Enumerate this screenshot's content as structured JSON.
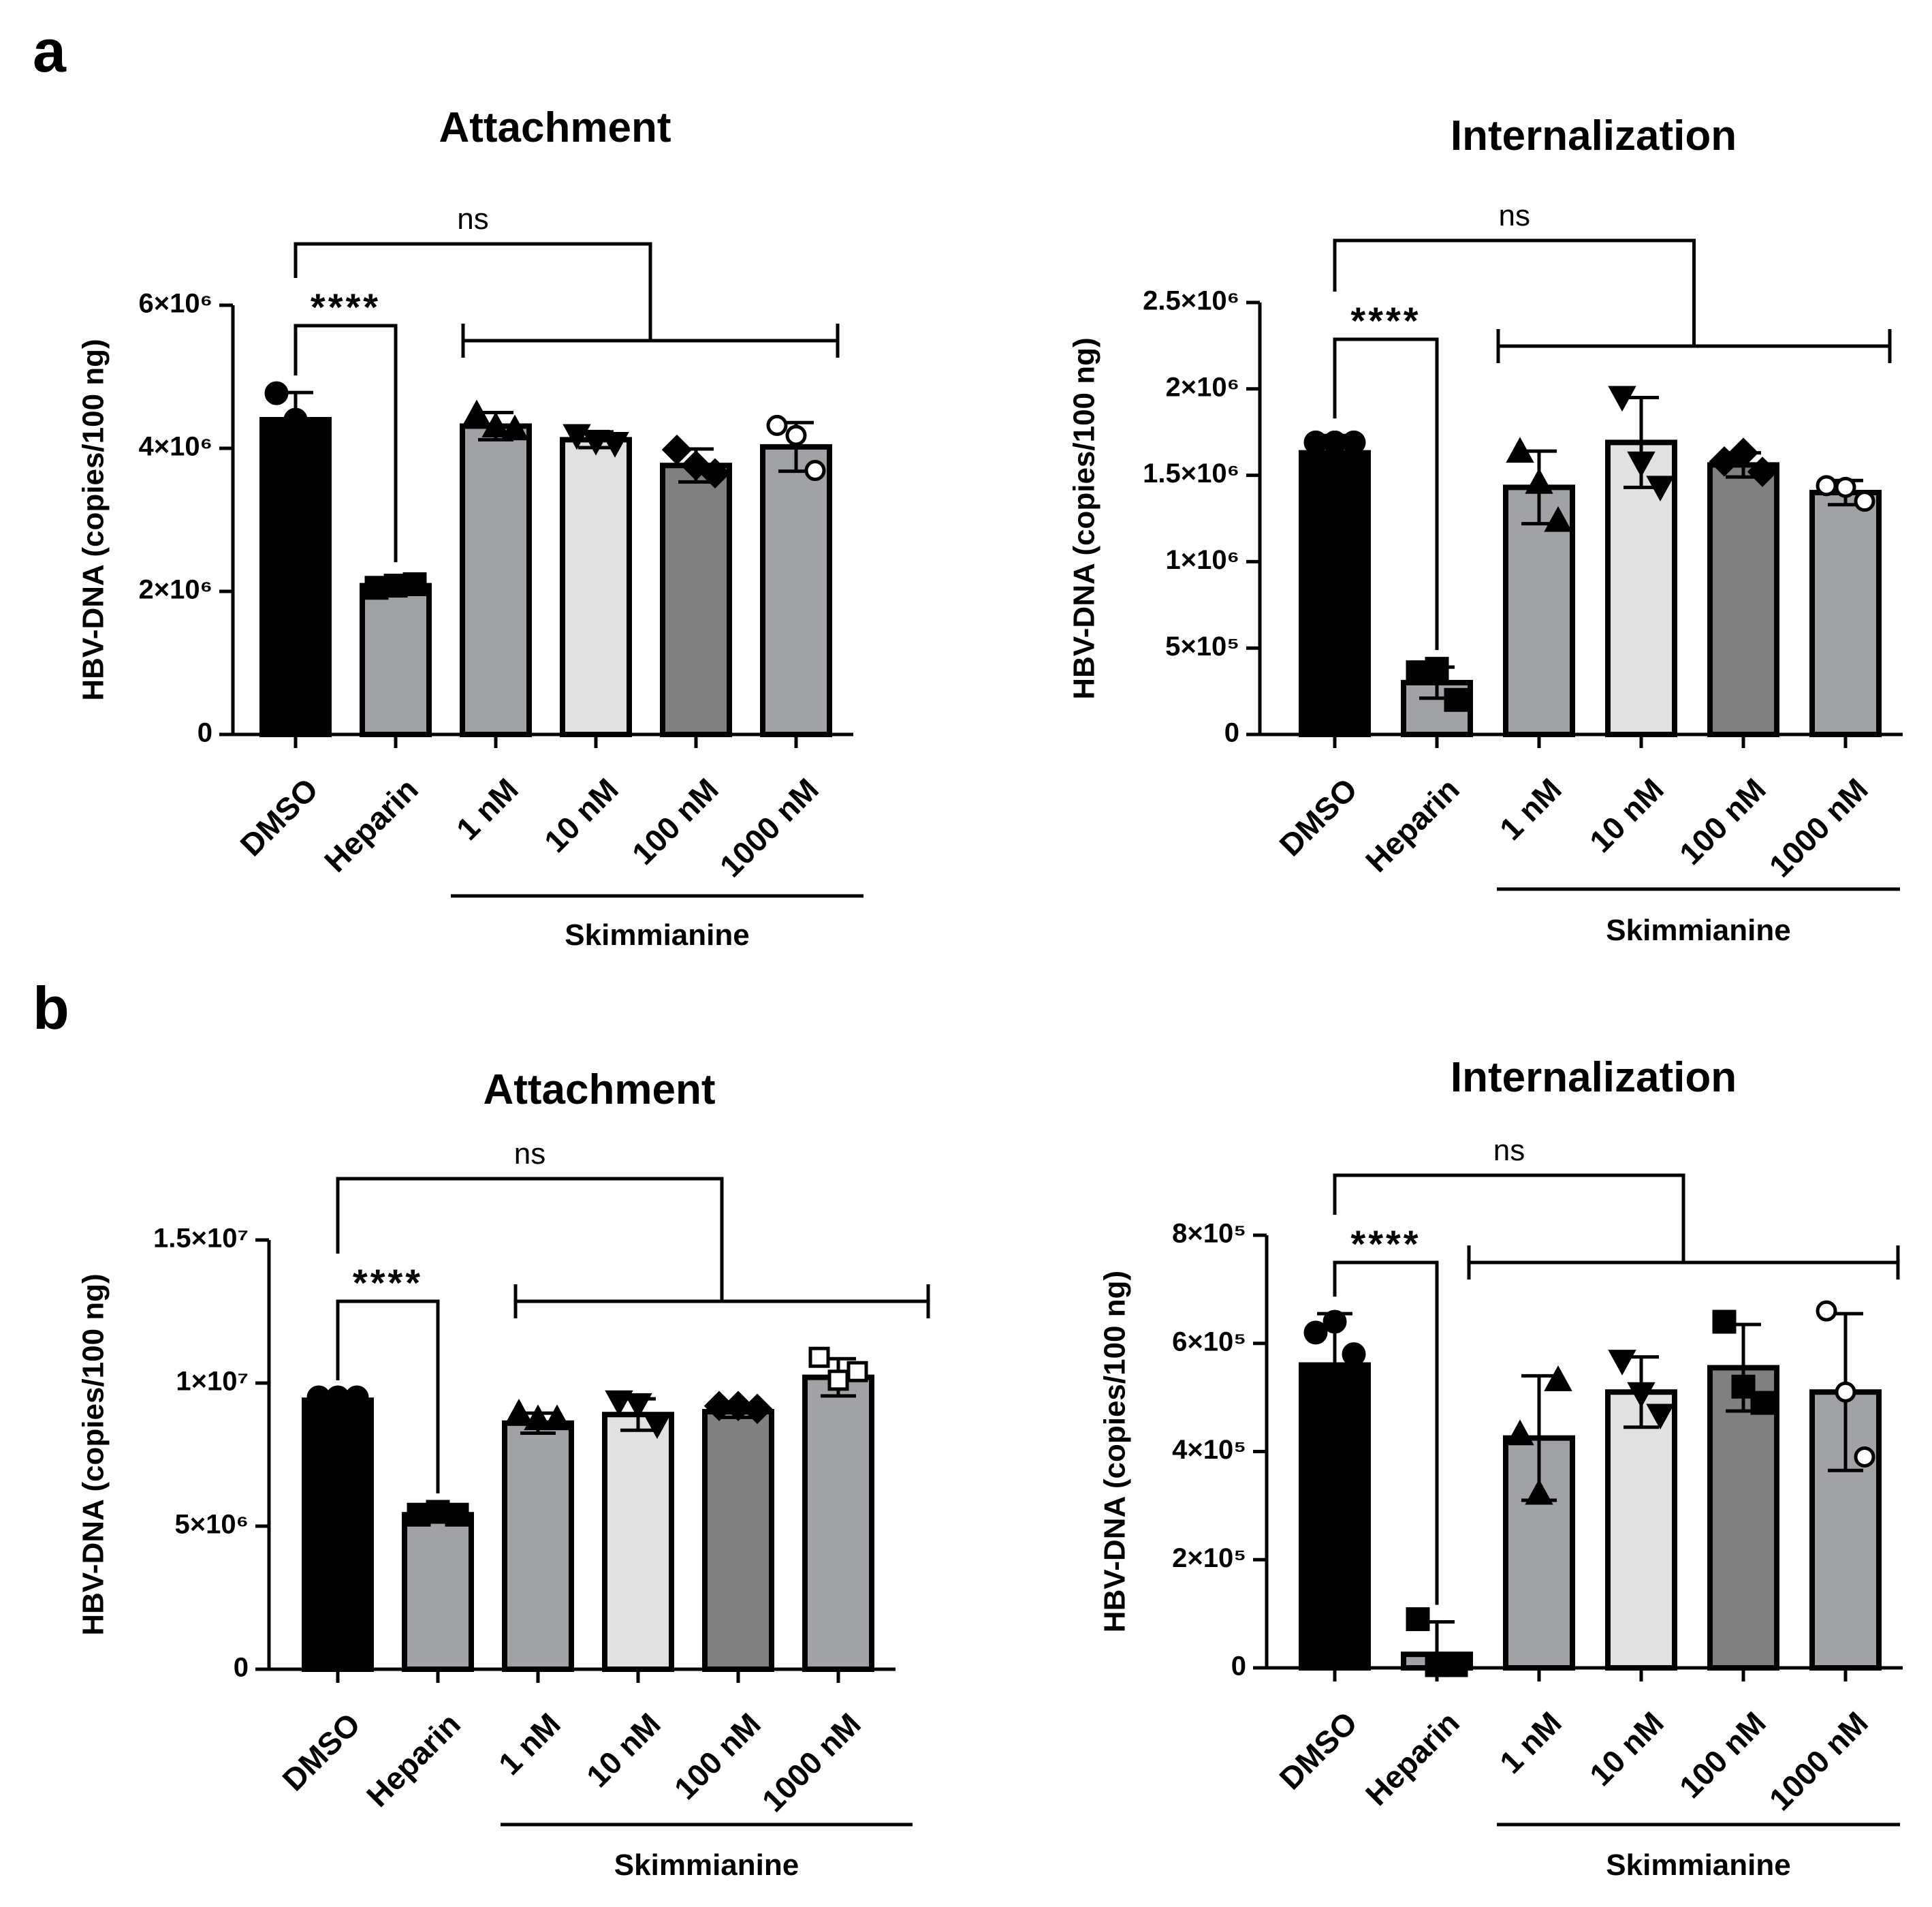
{
  "panel_labels": [
    "a",
    "b"
  ],
  "palette": {
    "DMSO": "#000000",
    "Heparin": "#a0a2a6",
    "1 nM": "#a0a2a6",
    "10 nM": "#e1e1e1",
    "100 nM": "#808080",
    "1000 nM": "#a0a2a6"
  },
  "chart_data": [
    {
      "type": "bar",
      "panel": "a",
      "title": "Attachment",
      "ylabel": "HBV-DNA (copies/100 ng)",
      "xlabel": "",
      "categories": [
        "DMSO",
        "Heparin",
        "1 nM",
        "10 nM",
        "100 nM",
        "1000 nM"
      ],
      "values": [
        4400000,
        2080000,
        4310000,
        4120000,
        3760000,
        4020000
      ],
      "errors": [
        380000,
        90000,
        190000,
        110000,
        230000,
        340000
      ],
      "points": [
        [
          4770000,
          4400000,
          4030000
        ],
        [
          2050000,
          2080000,
          2100000
        ],
        [
          4460000,
          4290000,
          4250000
        ],
        [
          4200000,
          4120000,
          4090000
        ],
        [
          3980000,
          3760000,
          3650000
        ],
        [
          4320000,
          4180000,
          3690000
        ]
      ],
      "markers": [
        "circle",
        "square",
        "triangle-up",
        "triangle-down",
        "diamond",
        "circle-open"
      ],
      "yticks": [
        0,
        2000000,
        4000000,
        6000000
      ],
      "ytick_labels": [
        "0",
        "2×10⁶",
        "4×10⁶",
        "6×10⁶"
      ],
      "ylim": [
        0,
        6000000
      ],
      "group_label": "Skimmianine",
      "significance": [
        {
          "from": "DMSO",
          "to": "Heparin",
          "label": "****"
        },
        {
          "from": "DMSO",
          "to": "1 nM to 1000 nM",
          "label": "ns"
        }
      ]
    },
    {
      "type": "bar",
      "panel": "a",
      "title": "Internalization",
      "ylabel": "HBV-DNA (copies/100 ng)",
      "xlabel": "",
      "categories": [
        "DMSO",
        "Heparin",
        "1 nM",
        "10 nM",
        "100 nM",
        "1000 nM"
      ],
      "values": [
        1630000,
        300000,
        1430000,
        1690000,
        1560000,
        1400000
      ],
      "errors": [
        100000,
        90000,
        210000,
        260000,
        70000,
        70000
      ],
      "points": [
        [
          1690000,
          1690000,
          1690000
        ],
        [
          360000,
          380000,
          200000
        ],
        [
          1630000,
          1450000,
          1230000
        ],
        [
          1960000,
          1580000,
          1440000
        ],
        [
          1580000,
          1630000,
          1520000
        ],
        [
          1440000,
          1430000,
          1350000
        ]
      ],
      "markers": [
        "circle",
        "square",
        "triangle-up",
        "triangle-down",
        "diamond",
        "circle-open"
      ],
      "yticks": [
        0,
        500000,
        1000000,
        1500000,
        2000000,
        2500000
      ],
      "ytick_labels": [
        "0",
        "5×10⁵",
        "1×10⁶",
        "1.5×10⁶",
        "2×10⁶",
        "2.5×10⁶"
      ],
      "ylim": [
        0,
        2500000
      ],
      "group_label": "Skimmianine",
      "significance": [
        {
          "from": "DMSO",
          "to": "Heparin",
          "label": "****"
        },
        {
          "from": "DMSO",
          "to": "1 nM to 1000 nM",
          "label": "ns"
        }
      ]
    },
    {
      "type": "bar",
      "panel": "b",
      "title": "Attachment",
      "ylabel": "HBV-DNA (copies/100 ng)",
      "xlabel": "",
      "categories": [
        "DMSO",
        "Heparin",
        "1 nM",
        "10 nM",
        "100 nM",
        "1000 nM"
      ],
      "values": [
        9400000,
        5400000,
        8600000,
        8900000,
        9000000,
        10200000
      ],
      "errors": [
        100000,
        150000,
        350000,
        550000,
        200000,
        650000
      ],
      "points": [
        [
          9500000,
          9500000,
          9500000
        ],
        [
          5400000,
          5500000,
          5400000
        ],
        [
          8900000,
          8700000,
          8700000
        ],
        [
          9400000,
          9300000,
          8600000
        ],
        [
          9200000,
          9200000,
          9100000
        ],
        [
          10900000,
          10100000,
          10400000
        ]
      ],
      "markers": [
        "circle",
        "square",
        "triangle-up",
        "triangle-down",
        "diamond",
        "square-open"
      ],
      "yticks": [
        0,
        5000000,
        10000000,
        15000000
      ],
      "ytick_labels": [
        "0",
        "5×10⁶",
        "1×10⁷",
        "1.5×10⁷"
      ],
      "ylim": [
        0,
        15000000
      ],
      "group_label": "Skimmianine",
      "significance": [
        {
          "from": "DMSO",
          "to": "Heparin",
          "label": "****"
        },
        {
          "from": "DMSO",
          "to": "1 nM to 1000 nM",
          "label": "ns"
        }
      ]
    },
    {
      "type": "bar",
      "panel": "b",
      "title": "Internalization",
      "ylabel": "HBV-DNA (copies/100 ng)",
      "xlabel": "",
      "categories": [
        "DMSO",
        "Heparin",
        "1 nM",
        "10 nM",
        "100 nM",
        "1000 nM"
      ],
      "values": [
        560000,
        25000,
        425000,
        510000,
        555000,
        510000
      ],
      "errors": [
        95000,
        60000,
        115000,
        65000,
        80000,
        145000
      ],
      "points": [
        [
          620000,
          640000,
          580000
        ],
        [
          90000,
          5000,
          5000
        ],
        [
          430000,
          320000,
          530000
        ],
        [
          570000,
          510000,
          470000
        ],
        [
          640000,
          520000,
          490000
        ],
        [
          660000,
          510000,
          390000
        ]
      ],
      "markers": [
        "circle",
        "square",
        "triangle-up",
        "triangle-down",
        "square",
        "circle-open"
      ],
      "yticks": [
        0,
        200000,
        400000,
        600000,
        800000
      ],
      "ytick_labels": [
        "0",
        "2×10⁵",
        "4×10⁵",
        "6×10⁵",
        "8×10⁵"
      ],
      "ylim": [
        0,
        800000
      ],
      "group_label": "Skimmianine",
      "significance": [
        {
          "from": "DMSO",
          "to": "Heparin",
          "label": "****"
        },
        {
          "from": "DMSO",
          "to": "1 nM to 1000 nM",
          "label": "ns"
        }
      ]
    }
  ]
}
